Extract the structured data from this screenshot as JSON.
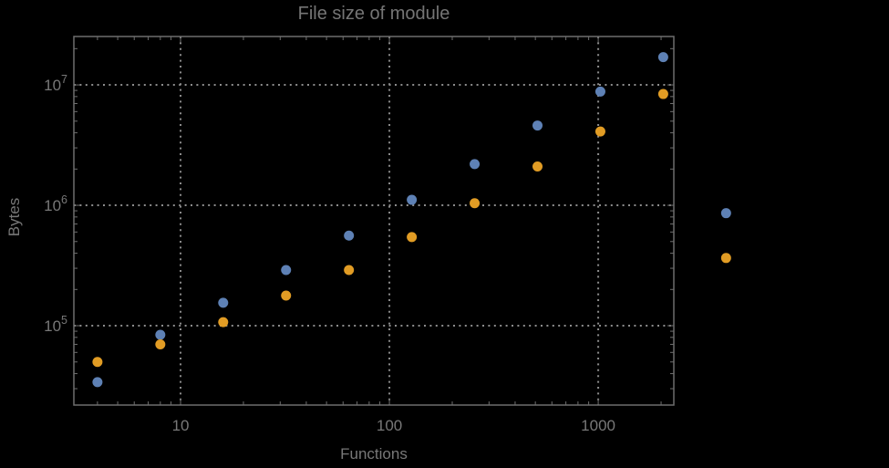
{
  "chart_data": {
    "type": "scatter",
    "title": "File size of module",
    "xlabel": "Functions",
    "ylabel": "Bytes",
    "x_scale": "log",
    "y_scale": "log",
    "legend": "none",
    "grid": "dotted-at-decades",
    "background_color": "#000000",
    "text_color": "#787878",
    "frame_color": "#6e6e6e",
    "grid_color": "#8c8c8c",
    "x_log_range": [
      0.489,
      3.362
    ],
    "y_log_range": [
      4.341,
      7.402
    ],
    "x_ticks": [
      {
        "value": 10,
        "label": "10"
      },
      {
        "value": 100,
        "label": "100"
      },
      {
        "value": 1000,
        "label": "1000"
      }
    ],
    "y_ticks": [
      {
        "value": 100000,
        "base": "10",
        "exponent": "5"
      },
      {
        "value": 1000000,
        "base": "10",
        "exponent": "6"
      },
      {
        "value": 10000000,
        "base": "10",
        "exponent": "7"
      }
    ],
    "marker": {
      "shape": "circle",
      "radius": 5.5
    },
    "series": [
      {
        "name": "series-1",
        "color": "#5e81b5",
        "points": [
          [
            4,
            34000
          ],
          [
            8,
            84000
          ],
          [
            16,
            155000
          ],
          [
            32,
            290000
          ],
          [
            64,
            560000
          ],
          [
            128,
            1110000
          ],
          [
            256,
            2200000
          ],
          [
            512,
            4600000
          ],
          [
            1024,
            8800000
          ],
          [
            2048,
            17000000
          ],
          [
            4096,
            860000
          ]
        ]
      },
      {
        "name": "series-2",
        "color": "#e19c24",
        "points": [
          [
            4,
            50000
          ],
          [
            8,
            70000
          ],
          [
            16,
            107000
          ],
          [
            32,
            178000
          ],
          [
            64,
            290000
          ],
          [
            128,
            545000
          ],
          [
            256,
            1040000
          ],
          [
            512,
            2100000
          ],
          [
            1024,
            4100000
          ],
          [
            2048,
            8400000
          ],
          [
            4096,
            365000
          ]
        ]
      }
    ]
  }
}
